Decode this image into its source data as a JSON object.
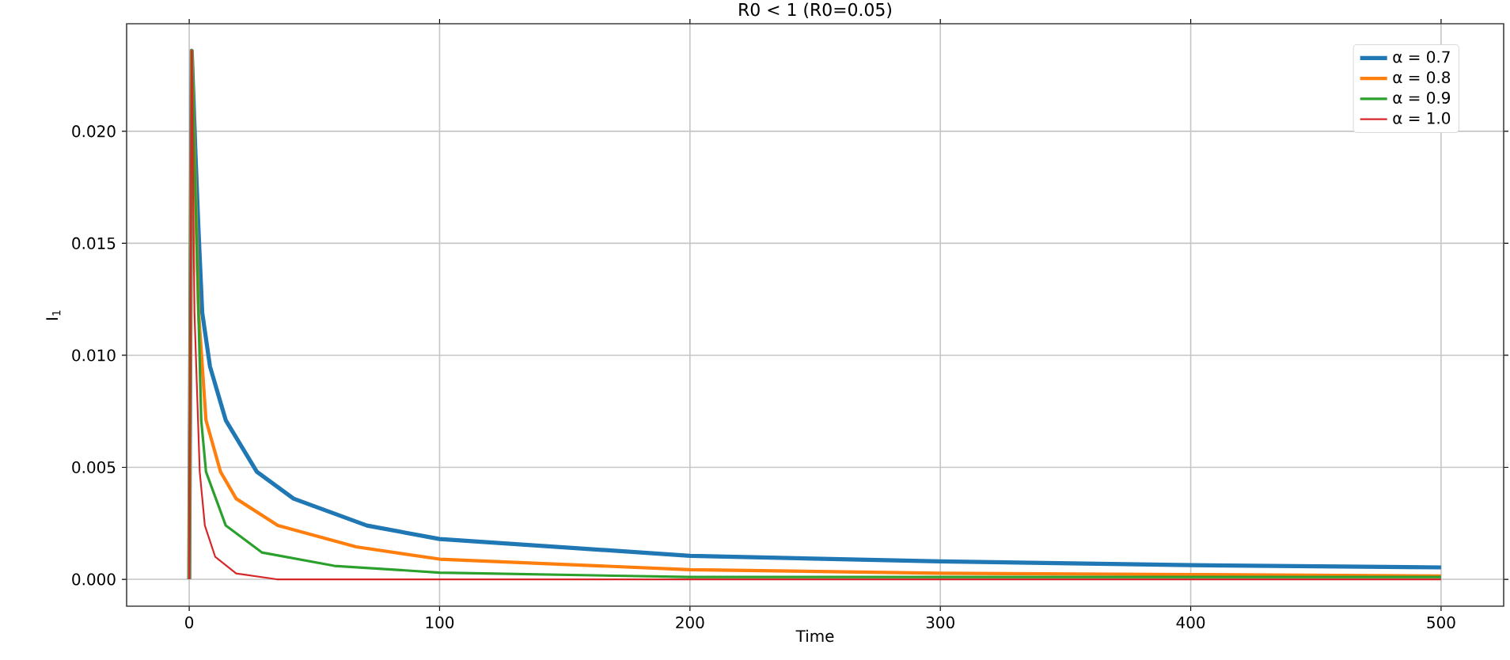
{
  "chart_data": {
    "type": "line",
    "title": "R0 < 1 (R0=0.05)",
    "xlabel": "Time",
    "ylabel": "I$_{1}$",
    "xlim": [
      -25,
      525
    ],
    "ylim": [
      -0.0012,
      0.0248
    ],
    "xticks": [
      0,
      100,
      200,
      300,
      400,
      500
    ],
    "yticks": [
      {
        "value": 0,
        "label": "0.000"
      },
      {
        "value": 0.005,
        "label": "0.005"
      },
      {
        "value": 0.01,
        "label": "0.010"
      },
      {
        "value": 0.015,
        "label": "0.015"
      },
      {
        "value": 0.02,
        "label": "0.020"
      }
    ],
    "grid": true,
    "legend": "top right",
    "series": [
      {
        "name": "α = 0.7",
        "color": "#1f77b4",
        "x": [
          0,
          1,
          2.5,
          3.75,
          5.2,
          8.3,
          14.6,
          27,
          41.7,
          71,
          100,
          200,
          300,
          400,
          500
        ],
        "values": [
          0,
          0.0236,
          0.019,
          0.0155,
          0.0119,
          0.0095,
          0.0071,
          0.0048,
          0.0036,
          0.0024,
          0.0018,
          0.00105,
          0.0008,
          0.00063,
          0.00053
        ]
      },
      {
        "name": "α = 0.8",
        "color": "#ff7f0e",
        "x": [
          0,
          1,
          3.75,
          6.7,
          12.5,
          18.75,
          35.4,
          66.7,
          100,
          200,
          300,
          400,
          500
        ],
        "values": [
          0,
          0.0236,
          0.0119,
          0.0071,
          0.0048,
          0.0036,
          0.0024,
          0.00145,
          0.0009,
          0.00043,
          0.00027,
          0.00021,
          0.00015
        ]
      },
      {
        "name": "α = 0.9",
        "color": "#2ca02c",
        "x": [
          0,
          1,
          4.8,
          6.7,
          14.6,
          29,
          58,
          100,
          200,
          300,
          400,
          500
        ],
        "values": [
          0,
          0.0236,
          0.0071,
          0.0048,
          0.0024,
          0.0012,
          0.0006,
          0.0003,
          0.0001,
          0.0001,
          0.0001,
          0.0001
        ]
      },
      {
        "name": "α = 1.0",
        "color": "#d62728",
        "x": [
          0,
          1,
          2.1,
          4.2,
          6.25,
          10.4,
          18.75,
          35,
          100,
          200,
          300,
          400,
          500
        ],
        "values": [
          0,
          0.0236,
          0.0119,
          0.0048,
          0.0024,
          0.001,
          0.00026,
          0,
          0,
          0,
          0,
          0,
          0
        ]
      }
    ]
  }
}
